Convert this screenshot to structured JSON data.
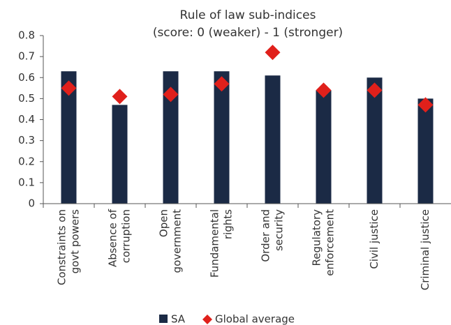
{
  "chart_data": {
    "type": "bar",
    "title": [
      "Rule of law sub-indices",
      "(score: 0 (weaker) - 1 (stronger)"
    ],
    "categories": [
      [
        "Constraints on",
        "govt powers"
      ],
      [
        "Absence of",
        "corruption"
      ],
      [
        "Open",
        "government"
      ],
      [
        "Fundamental",
        "rights"
      ],
      [
        "Order and",
        "security"
      ],
      [
        "Regulatory",
        "enforcement"
      ],
      [
        "Civil justice"
      ],
      [
        "Criminal justice"
      ]
    ],
    "series": [
      {
        "name": "SA",
        "color": "#1b2a45",
        "kind": "bar",
        "values": [
          0.63,
          0.47,
          0.63,
          0.63,
          0.61,
          0.54,
          0.6,
          0.5
        ]
      },
      {
        "name": "Global average",
        "color": "#e0201b",
        "kind": "diamond",
        "values": [
          0.55,
          0.51,
          0.52,
          0.57,
          0.72,
          0.54,
          0.54,
          0.47
        ]
      }
    ],
    "ylim": [
      0,
      0.8
    ],
    "yticks": [
      0,
      0.1,
      0.2,
      0.3,
      0.4,
      0.5,
      0.6,
      0.7,
      0.8
    ]
  }
}
